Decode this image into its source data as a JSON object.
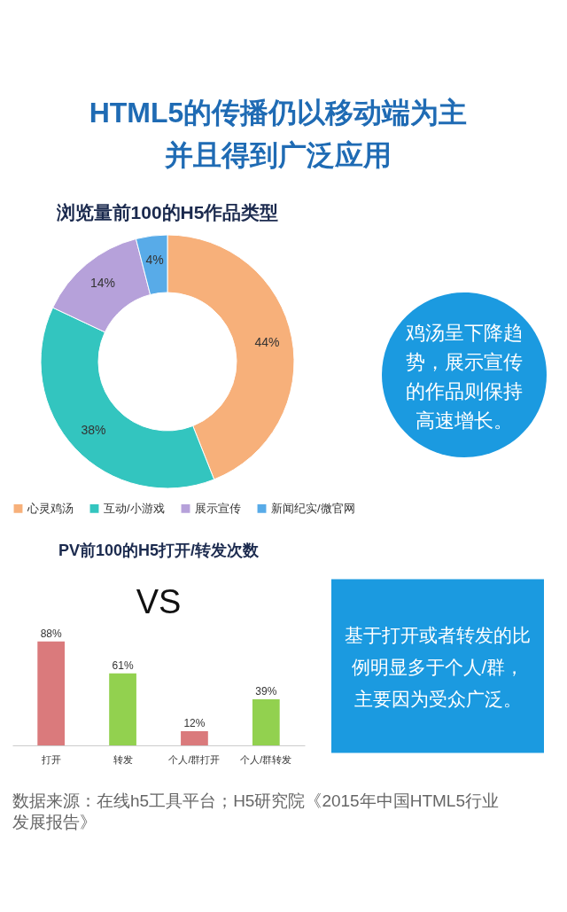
{
  "chart_data": [
    {
      "type": "other",
      "title": "HTML5的传播仍以移动端为主并且得到广泛应用"
    },
    {
      "type": "donut",
      "title": "浏览量前100的H5作品类型",
      "categories": [
        "心灵鸡汤",
        "互动/小游戏",
        "展示宣传",
        "新闻纪实/微官网"
      ],
      "values": [
        44,
        38,
        14,
        4
      ],
      "colors": [
        "#f7b07a",
        "#33c5bf",
        "#b6a1da",
        "#58abe8"
      ],
      "value_labels": [
        "44%",
        "38%",
        "14%",
        "4%"
      ],
      "legend": "bottom"
    },
    {
      "type": "other",
      "annotations": [
        "鸡汤呈下降趋势，展示宣传的作品则保持高速增长。"
      ]
    },
    {
      "type": "bar",
      "title": "PV前100的H5打开/转发次数",
      "categories": [
        "打开",
        "转发",
        "个人/群打开",
        "个人/群转发"
      ],
      "values": [
        88,
        61,
        12,
        39
      ],
      "colors": [
        "#da7a7c",
        "#92d14f",
        "#da7a7c",
        "#92d14f"
      ],
      "value_labels": [
        "88%",
        "61%",
        "12%",
        "39%"
      ],
      "annotations": [
        "VS"
      ]
    },
    {
      "type": "other",
      "annotations": [
        "基于打开或者转发的比例明显多于个人/群，主要因为受众广泛。"
      ]
    },
    {
      "type": "other",
      "annotations": [
        "数据来源：在线h5工具平台；H5研究院《2015年中国HTML5行业发展报告》"
      ]
    }
  ]
}
